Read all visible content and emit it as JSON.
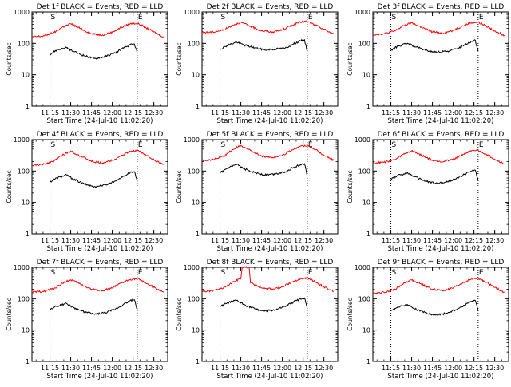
{
  "chart_data": [
    {
      "title": "Det 1f BLACK = Events, RED = LLD",
      "xlabel": "Start Time (24-Jul-10 11:02:20)",
      "ylabel": "Counts/sec",
      "type": "line",
      "yscale": "log",
      "ylim": [
        1,
        1000
      ],
      "x_ticks": [
        "11:15",
        "11:30",
        "11:45",
        "12:00",
        "12:15",
        "12:30"
      ],
      "y_ticks": [
        "1",
        "10",
        "100",
        "1000"
      ],
      "markers": [
        {
          "label": "S",
          "time": "11:15"
        },
        {
          "label": "E",
          "time": "12:18"
        }
      ],
      "series": [
        {
          "color": "#ff0000",
          "x": [
            "11:02",
            "11:10",
            "11:18",
            "11:24",
            "11:30",
            "11:37",
            "11:45",
            "11:53",
            "12:00",
            "12:07",
            "12:13",
            "12:18",
            "12:24",
            "12:30",
            "12:37"
          ],
          "values": [
            160,
            170,
            220,
            330,
            420,
            300,
            200,
            185,
            230,
            330,
            420,
            440,
            320,
            230,
            160
          ]
        },
        {
          "color": "#000000",
          "x": [
            "11:15",
            "11:20",
            "11:27",
            "11:32",
            "11:40",
            "11:47",
            "11:55",
            "12:02",
            "12:08",
            "12:13",
            "12:16",
            "12:18"
          ],
          "values": [
            45,
            62,
            72,
            55,
            40,
            33,
            38,
            50,
            70,
            90,
            95,
            50
          ]
        }
      ]
    },
    {
      "title": "Det 2f BLACK = Events, RED = LLD",
      "xlabel": "Start Time (24-Jul-10 11:02:20)",
      "ylabel": "Counts/sec",
      "type": "line",
      "yscale": "log",
      "ylim": [
        1,
        1000
      ],
      "x_ticks": [
        "11:15",
        "11:30",
        "11:45",
        "12:00",
        "12:15",
        "12:30"
      ],
      "y_ticks": [
        "1",
        "10",
        "100",
        "1000"
      ],
      "markers": [
        {
          "label": "S",
          "time": "11:15"
        },
        {
          "label": "E",
          "time": "12:18"
        }
      ],
      "series": [
        {
          "color": "#ff0000",
          "x": [
            "11:02",
            "11:10",
            "11:18",
            "11:24",
            "11:30",
            "11:37",
            "11:45",
            "11:53",
            "12:00",
            "12:07",
            "12:13",
            "12:18",
            "12:24",
            "12:30",
            "12:37"
          ],
          "values": [
            220,
            230,
            270,
            380,
            470,
            350,
            250,
            230,
            270,
            380,
            480,
            500,
            380,
            280,
            200
          ]
        },
        {
          "color": "#000000",
          "x": [
            "11:15",
            "11:20",
            "11:27",
            "11:32",
            "11:40",
            "11:47",
            "11:55",
            "12:02",
            "12:08",
            "12:13",
            "12:16",
            "12:18"
          ],
          "values": [
            65,
            85,
            110,
            90,
            72,
            62,
            66,
            70,
            95,
            120,
            130,
            55
          ]
        }
      ]
    },
    {
      "title": "Det 3f BLACK = Events, RED = LLD",
      "xlabel": "Start Time (24-Jul-10 11:02:20)",
      "ylabel": "Counts/sec",
      "type": "line",
      "yscale": "log",
      "ylim": [
        1,
        1000
      ],
      "x_ticks": [
        "11:15",
        "11:30",
        "11:45",
        "12:00",
        "12:15",
        "12:30"
      ],
      "y_ticks": [
        "1",
        "10",
        "100",
        "1000"
      ],
      "markers": [
        {
          "label": "S",
          "time": "11:15"
        },
        {
          "label": "E",
          "time": "12:18"
        }
      ],
      "series": [
        {
          "color": "#ff0000",
          "x": [
            "11:02",
            "11:10",
            "11:18",
            "11:24",
            "11:30",
            "11:37",
            "11:45",
            "11:53",
            "12:00",
            "12:07",
            "12:13",
            "12:18",
            "12:24",
            "12:30",
            "12:37"
          ],
          "values": [
            190,
            200,
            250,
            360,
            450,
            330,
            230,
            210,
            260,
            360,
            450,
            470,
            350,
            250,
            180
          ]
        },
        {
          "color": "#000000",
          "x": [
            "11:15",
            "11:20",
            "11:27",
            "11:32",
            "11:40",
            "11:47",
            "11:55",
            "12:02",
            "12:08",
            "12:13",
            "12:16",
            "12:18"
          ],
          "values": [
            60,
            80,
            100,
            80,
            60,
            52,
            55,
            65,
            90,
            115,
            125,
            55
          ]
        }
      ]
    },
    {
      "title": "Det 4f BLACK = Events, RED = LLD",
      "xlabel": "Start Time (24-Jul-10 11:02:20)",
      "ylabel": "Counts/sec",
      "type": "line",
      "yscale": "log",
      "ylim": [
        1,
        1000
      ],
      "x_ticks": [
        "11:15",
        "11:30",
        "11:45",
        "12:00",
        "12:15",
        "12:30"
      ],
      "y_ticks": [
        "1",
        "10",
        "100",
        "1000"
      ],
      "markers": [
        {
          "label": "S",
          "time": "11:15"
        },
        {
          "label": "E",
          "time": "12:18"
        }
      ],
      "series": [
        {
          "color": "#ff0000",
          "x": [
            "11:02",
            "11:10",
            "11:18",
            "11:24",
            "11:30",
            "11:37",
            "11:45",
            "11:53",
            "12:00",
            "12:07",
            "12:13",
            "12:18",
            "12:24",
            "12:30",
            "12:37"
          ],
          "values": [
            150,
            160,
            210,
            320,
            430,
            300,
            200,
            180,
            220,
            320,
            420,
            450,
            330,
            230,
            160
          ]
        },
        {
          "color": "#000000",
          "x": [
            "11:15",
            "11:20",
            "11:27",
            "11:32",
            "11:40",
            "11:47",
            "11:55",
            "12:02",
            "12:08",
            "12:13",
            "12:16",
            "12:18"
          ],
          "values": [
            45,
            60,
            75,
            55,
            38,
            32,
            36,
            48,
            68,
            90,
            95,
            45
          ]
        }
      ]
    },
    {
      "title": "Det 5f BLACK = Events, RED = LLD",
      "xlabel": "Start Time (24-Jul-10 11:02:20)",
      "ylabel": "Counts/sec",
      "type": "line",
      "yscale": "log",
      "ylim": [
        1,
        1000
      ],
      "x_ticks": [
        "11:15",
        "11:30",
        "11:45",
        "12:00",
        "12:15",
        "12:30"
      ],
      "y_ticks": [
        "1",
        "10",
        "100",
        "1000"
      ],
      "markers": [
        {
          "label": "S",
          "time": "11:15"
        },
        {
          "label": "E",
          "time": "12:18"
        }
      ],
      "series": [
        {
          "color": "#ff0000",
          "x": [
            "11:02",
            "11:10",
            "11:18",
            "11:24",
            "11:30",
            "11:37",
            "11:45",
            "11:53",
            "12:00",
            "12:07",
            "12:13",
            "12:18",
            "12:24",
            "12:30",
            "12:37"
          ],
          "values": [
            220,
            230,
            300,
            480,
            650,
            450,
            300,
            270,
            320,
            470,
            620,
            650,
            480,
            320,
            220
          ]
        },
        {
          "color": "#000000",
          "x": [
            "11:15",
            "11:20",
            "11:27",
            "11:32",
            "11:40",
            "11:47",
            "11:55",
            "12:02",
            "12:08",
            "12:13",
            "12:16",
            "12:18"
          ],
          "values": [
            85,
            120,
            160,
            120,
            90,
            75,
            80,
            95,
            130,
            160,
            170,
            70
          ]
        }
      ]
    },
    {
      "title": "Det 6f BLACK = Events, RED = LLD",
      "xlabel": "Start Time (24-Jul-10 11:02:20)",
      "ylabel": "Counts/sec",
      "type": "line",
      "yscale": "log",
      "ylim": [
        1,
        1000
      ],
      "x_ticks": [
        "11:15",
        "11:30",
        "11:45",
        "12:00",
        "12:15",
        "12:30"
      ],
      "y_ticks": [
        "1",
        "10",
        "100",
        "1000"
      ],
      "markers": [
        {
          "label": "S",
          "time": "11:15"
        },
        {
          "label": "E",
          "time": "12:18"
        }
      ],
      "series": [
        {
          "color": "#ff0000",
          "x": [
            "11:02",
            "11:10",
            "11:18",
            "11:24",
            "11:30",
            "11:37",
            "11:45",
            "11:53",
            "12:00",
            "12:07",
            "12:13",
            "12:18",
            "12:24",
            "12:30",
            "12:37"
          ],
          "values": [
            180,
            190,
            230,
            340,
            440,
            320,
            220,
            200,
            240,
            340,
            430,
            460,
            340,
            240,
            170
          ]
        },
        {
          "color": "#000000",
          "x": [
            "11:15",
            "11:20",
            "11:27",
            "11:32",
            "11:40",
            "11:47",
            "11:55",
            "12:02",
            "12:08",
            "12:13",
            "12:16",
            "12:18"
          ],
          "values": [
            55,
            72,
            88,
            66,
            48,
            40,
            44,
            56,
            78,
            100,
            105,
            50
          ]
        }
      ]
    },
    {
      "title": "Det 7f BLACK = Events, RED = LLD",
      "xlabel": "Start Time (24-Jul-10 11:02:20)",
      "ylabel": "Counts/sec",
      "type": "line",
      "yscale": "log",
      "ylim": [
        1,
        1000
      ],
      "x_ticks": [
        "11:15",
        "11:30",
        "11:45",
        "12:00",
        "12:15",
        "12:30"
      ],
      "y_ticks": [
        "1",
        "10",
        "100",
        "1000"
      ],
      "markers": [
        {
          "label": "S",
          "time": "11:15"
        },
        {
          "label": "E",
          "time": "12:18"
        }
      ],
      "series": [
        {
          "color": "#ff0000",
          "x": [
            "11:02",
            "11:10",
            "11:18",
            "11:24",
            "11:30",
            "11:37",
            "11:45",
            "11:53",
            "12:00",
            "12:07",
            "12:13",
            "12:18",
            "12:24",
            "12:30",
            "12:37"
          ],
          "values": [
            160,
            170,
            210,
            310,
            400,
            290,
            200,
            180,
            220,
            320,
            410,
            440,
            320,
            230,
            160
          ]
        },
        {
          "color": "#000000",
          "x": [
            "11:15",
            "11:20",
            "11:27",
            "11:32",
            "11:40",
            "11:47",
            "11:55",
            "12:02",
            "12:08",
            "12:13",
            "12:16",
            "12:18"
          ],
          "values": [
            45,
            58,
            70,
            52,
            38,
            32,
            36,
            46,
            65,
            88,
            92,
            45
          ]
        }
      ]
    },
    {
      "title": "Det 8f BLACK = Events, RED = LLD",
      "xlabel": "Start Time (24-Jul-10 11:02:20)",
      "ylabel": "Counts/sec",
      "type": "line",
      "yscale": "log",
      "ylim": [
        1,
        1000
      ],
      "x_ticks": [
        "11:15",
        "11:30",
        "11:45",
        "12:00",
        "12:15",
        "12:30"
      ],
      "y_ticks": [
        "1",
        "10",
        "100",
        "1000"
      ],
      "markers": [
        {
          "label": "S",
          "time": "11:15"
        },
        {
          "label": "E",
          "time": "12:18"
        }
      ],
      "series": [
        {
          "color": "#ff0000",
          "x": [
            "11:02",
            "11:10",
            "11:18",
            "11:24",
            "11:30",
            "11:31",
            "11:36",
            "11:37",
            "11:45",
            "11:53",
            "12:00",
            "12:07",
            "12:13",
            "12:18",
            "12:24",
            "12:30",
            "12:37"
          ],
          "values": [
            170,
            180,
            230,
            340,
            430,
            1000,
            1000,
            320,
            220,
            200,
            240,
            340,
            430,
            460,
            340,
            240,
            170
          ]
        },
        {
          "color": "#000000",
          "x": [
            "11:15",
            "11:20",
            "11:27",
            "11:32",
            "11:40",
            "11:47",
            "11:55",
            "12:02",
            "12:08",
            "12:13",
            "12:16",
            "12:18"
          ],
          "values": [
            55,
            72,
            88,
            66,
            48,
            40,
            44,
            56,
            78,
            100,
            105,
            50
          ]
        }
      ]
    },
    {
      "title": "Det 9f BLACK = Events, RED = LLD",
      "xlabel": "Start Time (24-Jul-10 11:02:20)",
      "ylabel": "Counts/sec",
      "type": "line",
      "yscale": "log",
      "ylim": [
        1,
        1000
      ],
      "x_ticks": [
        "11:15",
        "11:30",
        "11:45",
        "12:00",
        "12:15",
        "12:30"
      ],
      "y_ticks": [
        "1",
        "10",
        "100",
        "1000"
      ],
      "markers": [
        {
          "label": "S",
          "time": "11:15"
        },
        {
          "label": "E",
          "time": "12:18"
        }
      ],
      "series": [
        {
          "color": "#ff0000",
          "x": [
            "11:02",
            "11:10",
            "11:18",
            "11:24",
            "11:30",
            "11:37",
            "11:45",
            "11:53",
            "12:00",
            "12:07",
            "12:13",
            "12:18",
            "12:24",
            "12:30",
            "12:37"
          ],
          "values": [
            150,
            160,
            200,
            300,
            400,
            290,
            200,
            180,
            220,
            320,
            420,
            450,
            330,
            230,
            160
          ]
        },
        {
          "color": "#000000",
          "x": [
            "11:15",
            "11:20",
            "11:27",
            "11:32",
            "11:40",
            "11:47",
            "11:55",
            "12:02",
            "12:08",
            "12:13",
            "12:16",
            "12:18"
          ],
          "values": [
            40,
            55,
            65,
            48,
            36,
            30,
            34,
            45,
            62,
            82,
            88,
            40
          ]
        }
      ]
    }
  ]
}
